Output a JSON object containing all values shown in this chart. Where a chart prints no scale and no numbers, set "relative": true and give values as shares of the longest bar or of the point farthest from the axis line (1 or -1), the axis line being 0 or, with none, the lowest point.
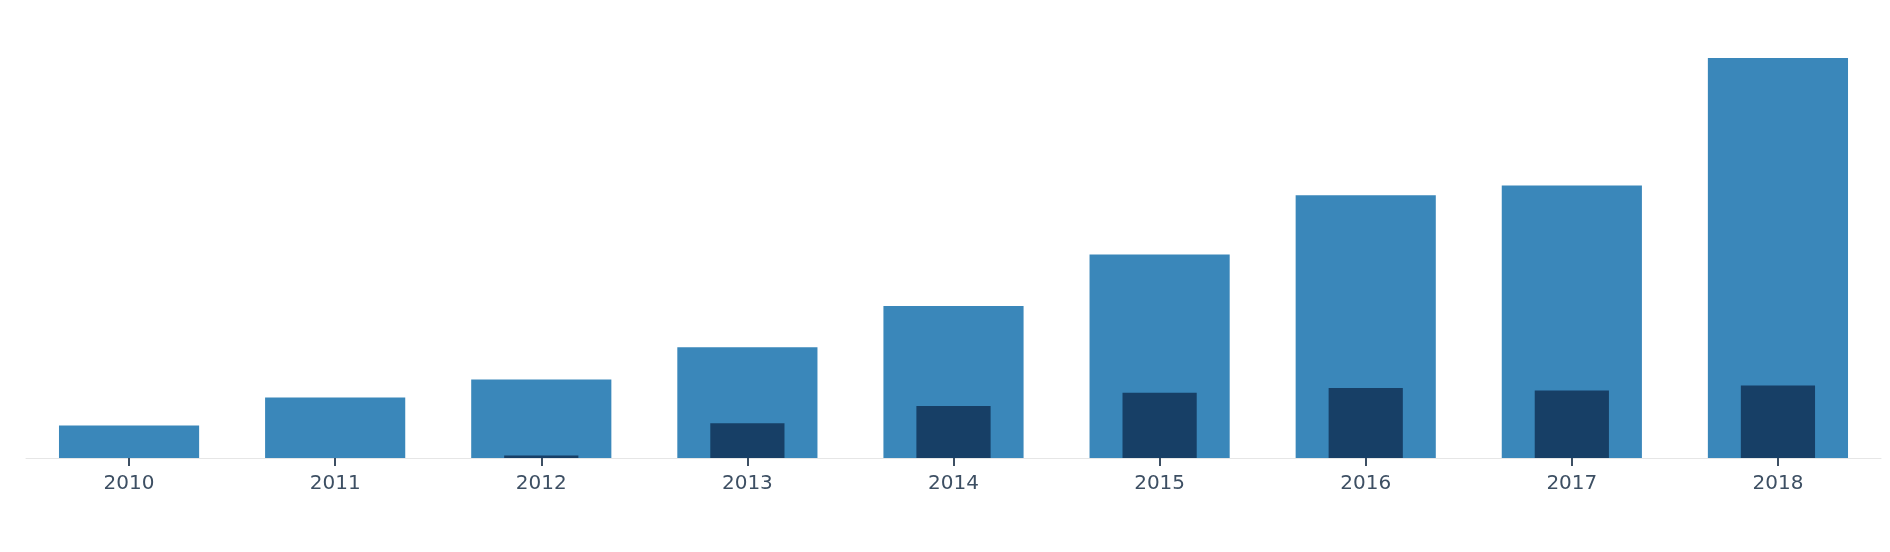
{
  "chart_data": {
    "type": "bar",
    "relative": true,
    "categories": [
      "2010",
      "2011",
      "2012",
      "2013",
      "2014",
      "2015",
      "2016",
      "2017",
      "2018"
    ],
    "series": [
      {
        "color": "#3a87ba",
        "values": [
          0.081,
          0.151,
          0.196,
          0.277,
          0.38,
          0.509,
          0.657,
          0.681,
          1
        ]
      },
      {
        "color": "#173f66",
        "values": [
          0,
          0,
          0.006,
          0.087,
          0.13,
          0.163,
          0.175,
          0.169,
          0.181
        ]
      }
    ]
  }
}
